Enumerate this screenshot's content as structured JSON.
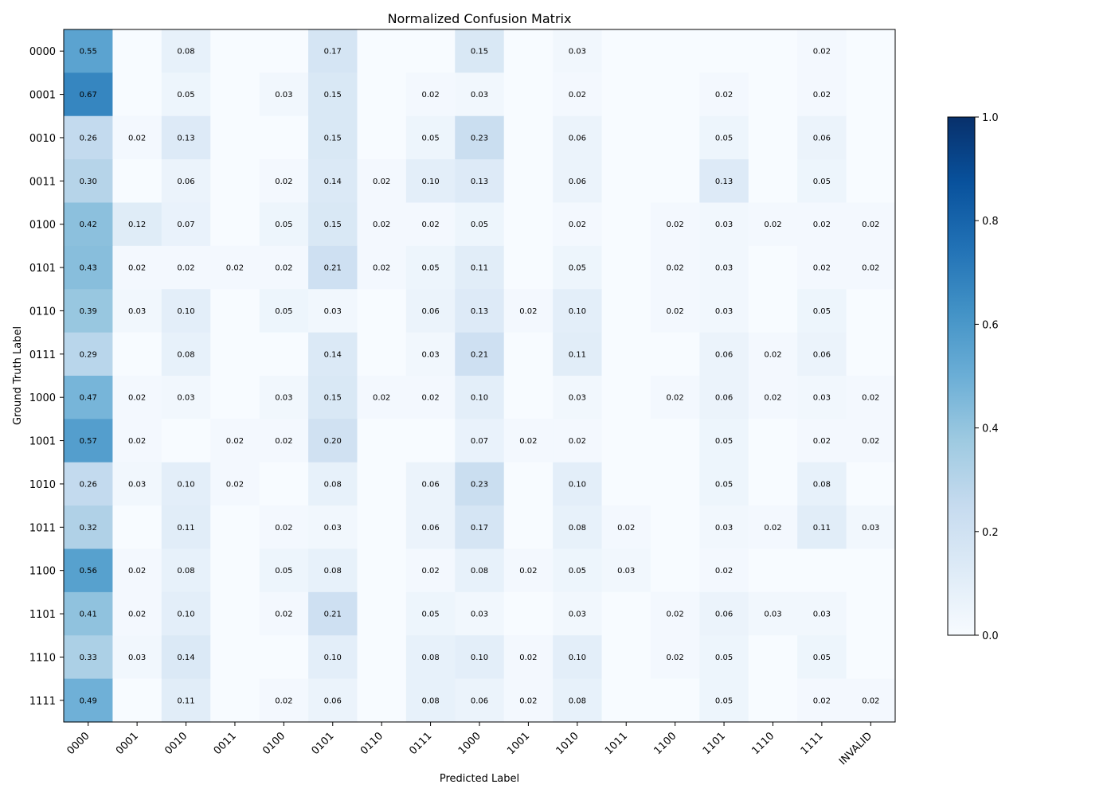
{
  "chart_data": {
    "type": "heatmap",
    "title": "Normalized Confusion Matrix",
    "xlabel": "Predicted Label",
    "ylabel": "Ground Truth Label",
    "x_categories": [
      "0000",
      "0001",
      "0010",
      "0011",
      "0100",
      "0101",
      "0110",
      "0111",
      "1000",
      "1001",
      "1010",
      "1011",
      "1100",
      "1101",
      "1110",
      "1111",
      "INVALID"
    ],
    "y_categories": [
      "0000",
      "0001",
      "0010",
      "0011",
      "0100",
      "0101",
      "0110",
      "0111",
      "1000",
      "1001",
      "1010",
      "1011",
      "1100",
      "1101",
      "1110",
      "1111"
    ],
    "values": [
      [
        0.55,
        0,
        0.08,
        0,
        0,
        0.17,
        0,
        0,
        0.15,
        0,
        0.03,
        0,
        0,
        0,
        0,
        0.02,
        0
      ],
      [
        0.67,
        0,
        0.05,
        0,
        0.03,
        0.15,
        0,
        0.02,
        0.03,
        0,
        0.02,
        0,
        0,
        0.02,
        0,
        0.02,
        0
      ],
      [
        0.26,
        0.02,
        0.13,
        0,
        0,
        0.15,
        0,
        0.05,
        0.23,
        0,
        0.06,
        0,
        0,
        0.05,
        0,
        0.06,
        0
      ],
      [
        0.3,
        0,
        0.06,
        0,
        0.02,
        0.14,
        0.02,
        0.1,
        0.13,
        0,
        0.06,
        0,
        0,
        0.13,
        0,
        0.05,
        0
      ],
      [
        0.42,
        0.12,
        0.07,
        0,
        0.05,
        0.15,
        0.02,
        0.02,
        0.05,
        0,
        0.02,
        0,
        0.02,
        0.03,
        0.02,
        0.02,
        0.02
      ],
      [
        0.43,
        0.02,
        0.02,
        0.02,
        0.02,
        0.21,
        0.02,
        0.05,
        0.11,
        0,
        0.05,
        0,
        0.02,
        0.03,
        0,
        0.02,
        0.02
      ],
      [
        0.39,
        0.03,
        0.1,
        0,
        0.05,
        0.03,
        0,
        0.06,
        0.13,
        0.02,
        0.1,
        0,
        0.02,
        0.03,
        0,
        0.05,
        0
      ],
      [
        0.29,
        0,
        0.08,
        0,
        0,
        0.14,
        0,
        0.03,
        0.21,
        0,
        0.11,
        0,
        0,
        0.06,
        0.02,
        0.06,
        0
      ],
      [
        0.47,
        0.02,
        0.03,
        0,
        0.03,
        0.15,
        0.02,
        0.02,
        0.1,
        0,
        0.03,
        0,
        0.02,
        0.06,
        0.02,
        0.03,
        0.02
      ],
      [
        0.57,
        0.02,
        0,
        0.02,
        0.02,
        0.2,
        0,
        0,
        0.07,
        0.02,
        0.02,
        0,
        0,
        0.05,
        0,
        0.02,
        0.02
      ],
      [
        0.26,
        0.03,
        0.1,
        0.02,
        0,
        0.08,
        0,
        0.06,
        0.23,
        0,
        0.1,
        0,
        0,
        0.05,
        0,
        0.08,
        0
      ],
      [
        0.32,
        0,
        0.11,
        0,
        0.02,
        0.03,
        0,
        0.06,
        0.17,
        0,
        0.08,
        0.02,
        0,
        0.03,
        0.02,
        0.11,
        0.03
      ],
      [
        0.56,
        0.02,
        0.08,
        0,
        0.05,
        0.08,
        0,
        0.02,
        0.08,
        0.02,
        0.05,
        0.03,
        0,
        0.02,
        0,
        0,
        0
      ],
      [
        0.41,
        0.02,
        0.1,
        0,
        0.02,
        0.21,
        0,
        0.05,
        0.03,
        0,
        0.03,
        0,
        0.02,
        0.06,
        0.03,
        0.03,
        0
      ],
      [
        0.33,
        0.03,
        0.14,
        0,
        0,
        0.1,
        0,
        0.08,
        0.1,
        0.02,
        0.1,
        0,
        0.02,
        0.05,
        0,
        0.05,
        0
      ],
      [
        0.49,
        0,
        0.11,
        0,
        0.02,
        0.06,
        0,
        0.08,
        0.06,
        0.02,
        0.08,
        0,
        0,
        0.05,
        0,
        0.02,
        0.02
      ]
    ],
    "colormap": "Blues",
    "vmin": 0.0,
    "vmax": 1.0,
    "colorbar_ticks": [
      "0.0",
      "0.2",
      "0.4",
      "0.6",
      "0.8",
      "1.0"
    ],
    "hide_zero_labels": true,
    "grid": false
  }
}
